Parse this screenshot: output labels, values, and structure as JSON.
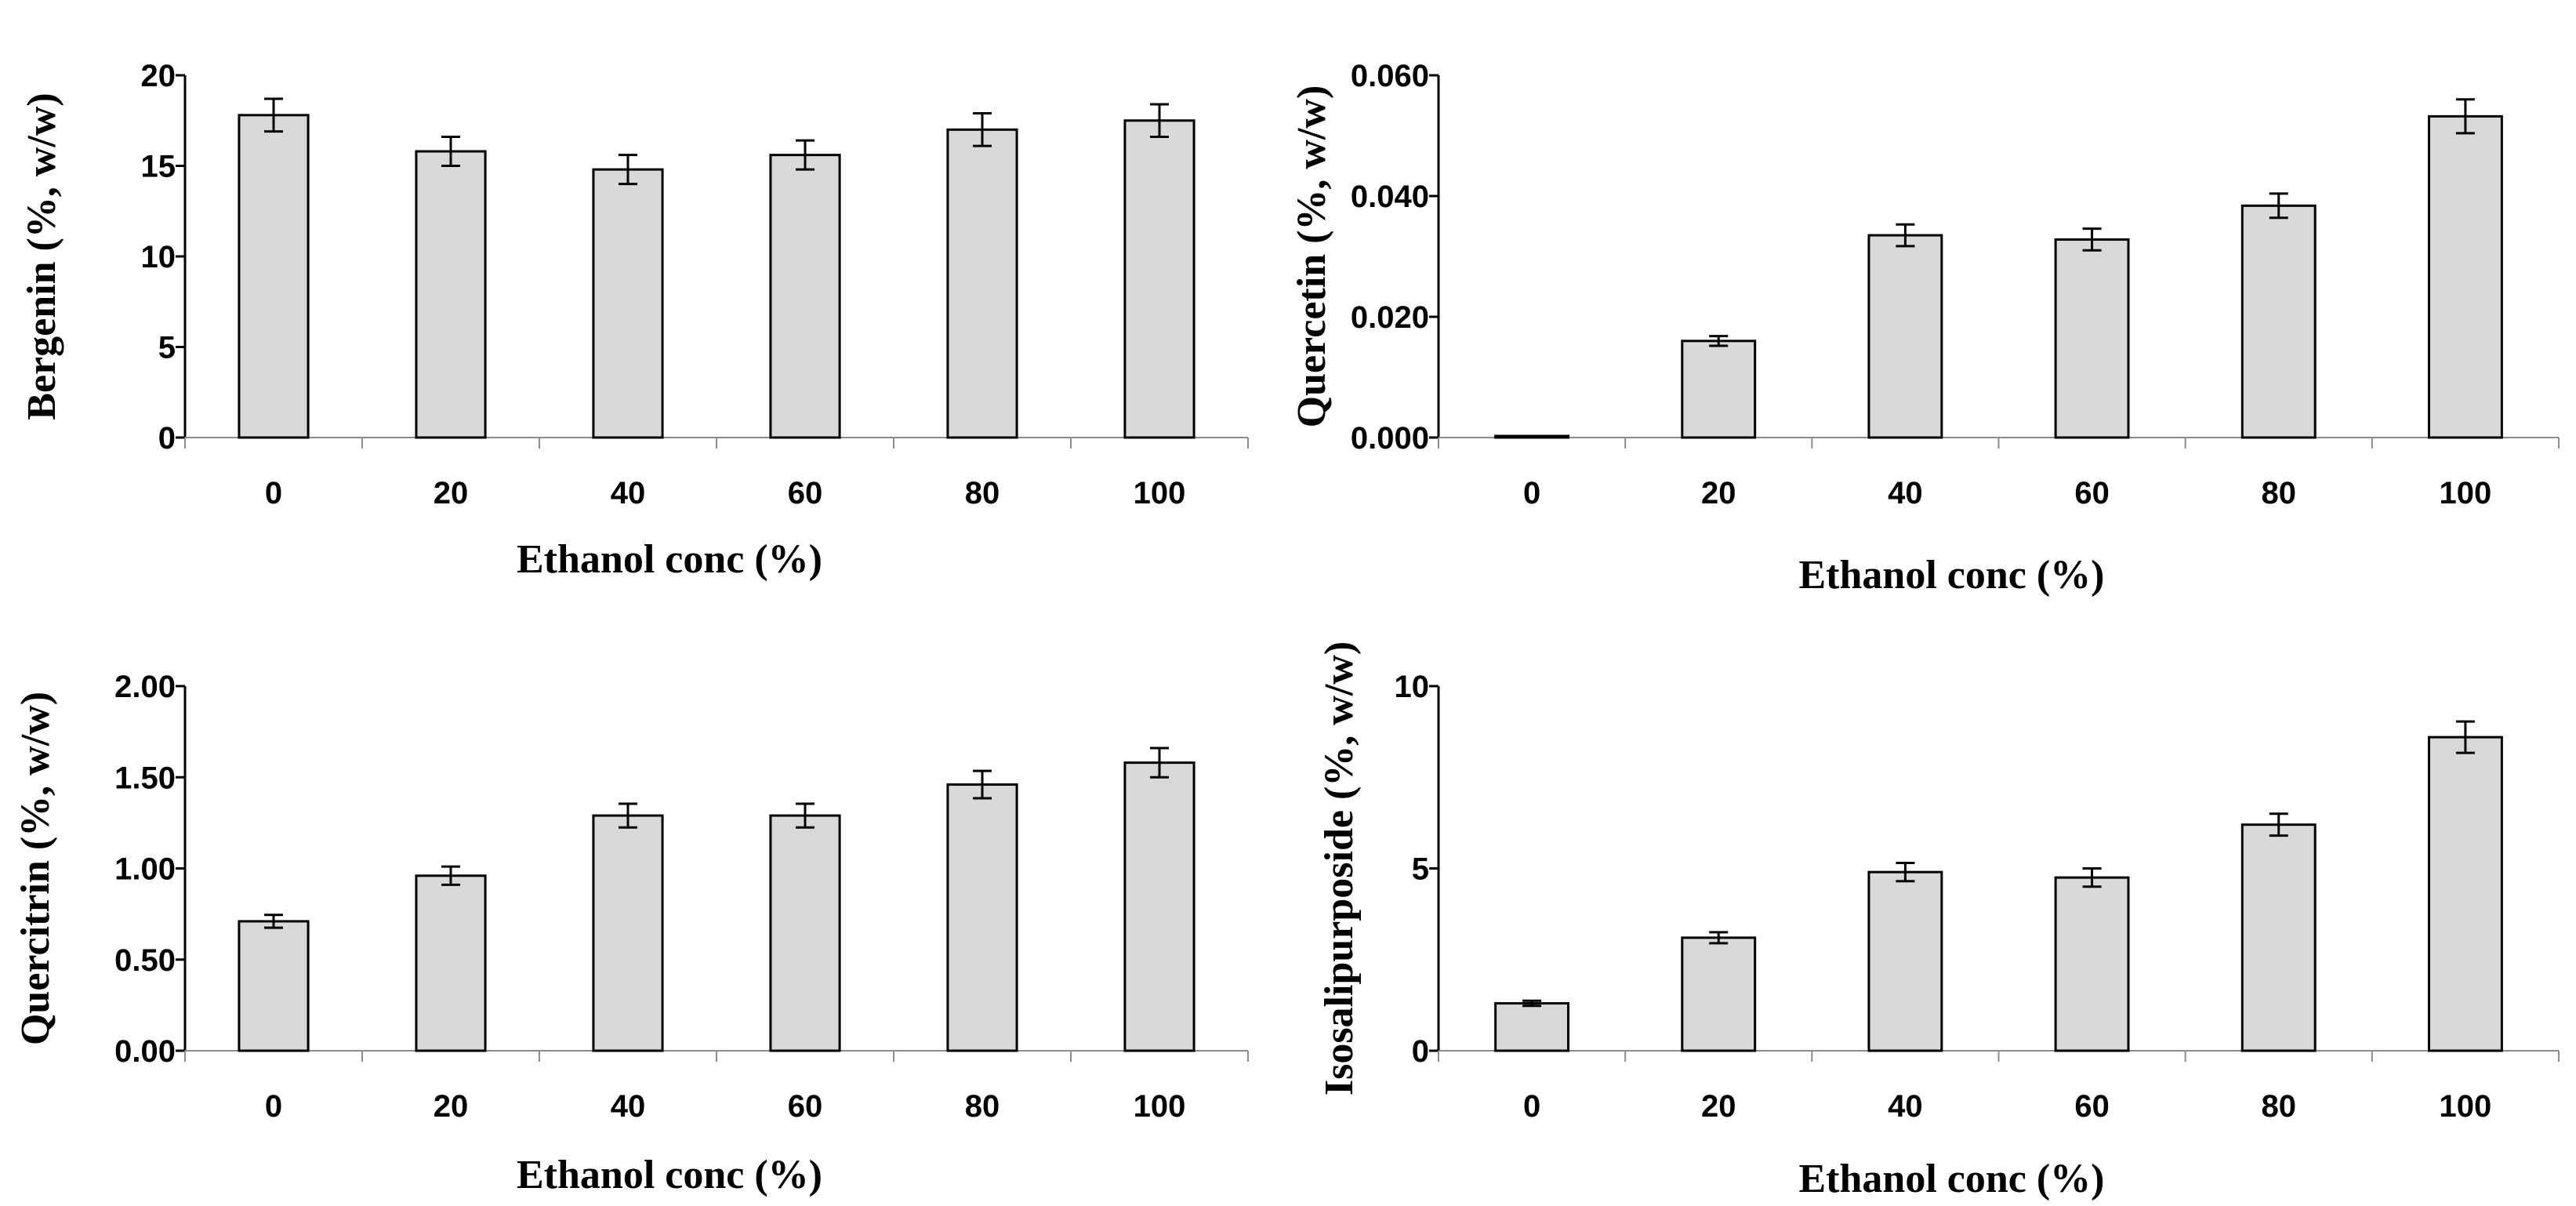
{
  "chart_data": [
    {
      "type": "bar",
      "title": "",
      "xlabel": "Ethanol conc (%)",
      "ylabel": "Bergenin (%, w/w)",
      "categories": [
        "0",
        "20",
        "40",
        "60",
        "80",
        "100"
      ],
      "values": [
        17.8,
        15.8,
        14.8,
        15.6,
        17.0,
        17.5
      ],
      "errors": [
        0.9,
        0.8,
        0.8,
        0.8,
        0.9,
        0.9
      ],
      "ylim": [
        0,
        20
      ],
      "yticks": [
        "0",
        "5",
        "10",
        "15",
        "20"
      ],
      "grid": false
    },
    {
      "type": "bar",
      "title": "",
      "xlabel": "Ethanol conc (%)",
      "ylabel": "Quercetin (%, w/w)",
      "categories": [
        "0",
        "20",
        "40",
        "60",
        "80",
        "100"
      ],
      "values": [
        0.0,
        0.016,
        0.0335,
        0.0328,
        0.0384,
        0.0532
      ],
      "errors": [
        0.0002,
        0.0008,
        0.0018,
        0.0018,
        0.002,
        0.0028
      ],
      "ylim": [
        0,
        0.06
      ],
      "yticks": [
        "0.000",
        "0.020",
        "0.040",
        "0.060"
      ],
      "grid": false
    },
    {
      "type": "bar",
      "title": "",
      "xlabel": "Ethanol conc (%)",
      "ylabel": "Quercitrin (%, w/w)",
      "categories": [
        "0",
        "20",
        "40",
        "60",
        "80",
        "100"
      ],
      "values": [
        0.71,
        0.96,
        1.29,
        1.29,
        1.46,
        1.58
      ],
      "errors": [
        0.035,
        0.05,
        0.065,
        0.065,
        0.075,
        0.08
      ],
      "ylim": [
        0,
        2.0
      ],
      "yticks": [
        "0.00",
        "0.50",
        "1.00",
        "1.50",
        "2.00"
      ],
      "grid": false
    },
    {
      "type": "bar",
      "title": "",
      "xlabel": "Ethanol conc (%)",
      "ylabel": "Isosalipurposide (%, w/w)",
      "categories": [
        "0",
        "20",
        "40",
        "60",
        "80",
        "100"
      ],
      "values": [
        1.3,
        3.1,
        4.9,
        4.75,
        6.2,
        8.6
      ],
      "errors": [
        0.07,
        0.15,
        0.25,
        0.25,
        0.3,
        0.43
      ],
      "ylim": [
        0,
        10
      ],
      "yticks": [
        "0",
        "5",
        "10"
      ],
      "grid": false
    }
  ]
}
